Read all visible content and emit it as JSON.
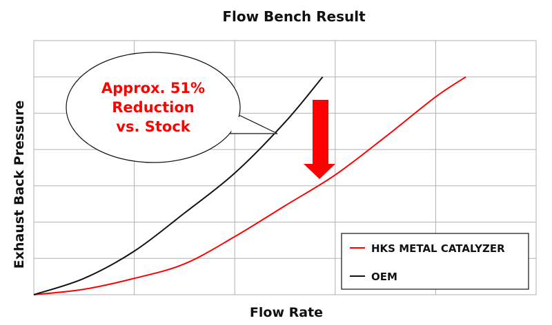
{
  "chart_data": {
    "type": "line",
    "title": "Flow Bench Result",
    "xlabel": "Flow Rate",
    "ylabel": "Exhaust Back Pressure",
    "xlim": [
      0,
      10
    ],
    "ylim": [
      0,
      7
    ],
    "grid": true,
    "legend_position": "bottom-right",
    "series": [
      {
        "name": "HKS METAL CATALYZER",
        "color": "#ff0000",
        "x": [
          0,
          1,
          2,
          3,
          4,
          5,
          6,
          7,
          8,
          8.6
        ],
        "y": [
          0,
          0.15,
          0.45,
          0.85,
          1.6,
          2.45,
          3.3,
          4.35,
          5.45,
          6
        ]
      },
      {
        "name": "OEM",
        "color": "#111111",
        "x": [
          0,
          1,
          2,
          3,
          4,
          5,
          5.75
        ],
        "y": [
          0,
          0.45,
          1.2,
          2.25,
          3.35,
          4.75,
          6
        ]
      }
    ],
    "annotation": {
      "lines": [
        "Approx. 51%",
        "Reduction",
        "vs. Stock"
      ],
      "color": "#ff0000",
      "arrow": "down"
    }
  }
}
